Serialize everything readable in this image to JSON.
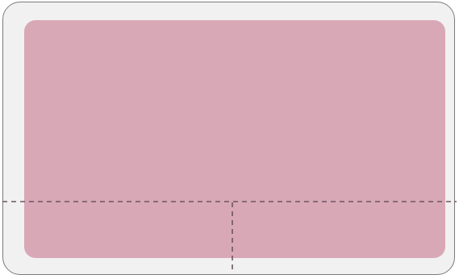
{
  "colors": {
    "surface": "#d9a8b7",
    "frame_fill": "#f1f1f1",
    "frame_border": "#7a7a7a",
    "divider": "#6b5560"
  },
  "zones": {
    "divider_style": "dashed"
  }
}
